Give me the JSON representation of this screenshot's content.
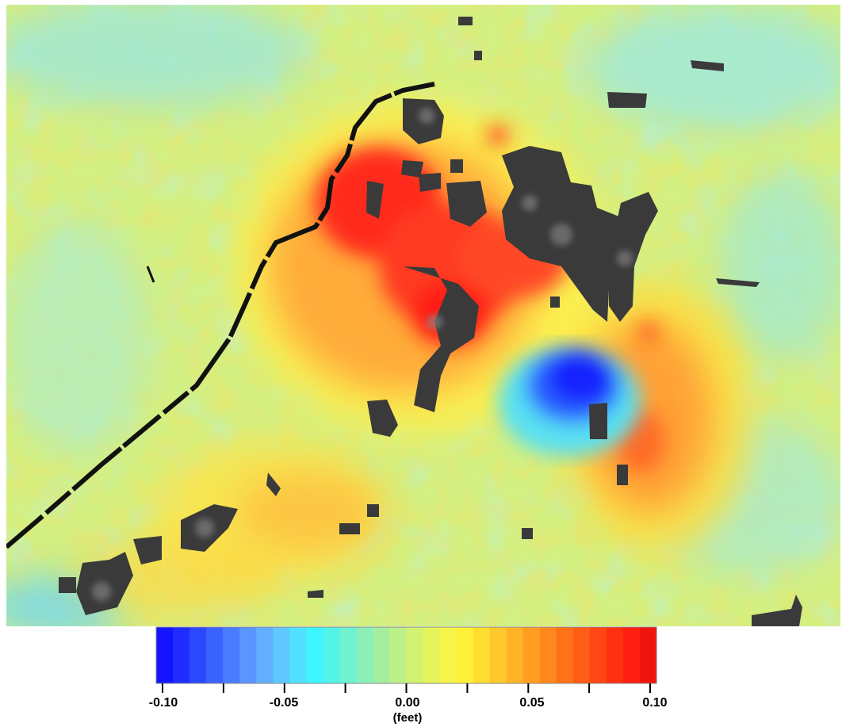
{
  "map": {
    "colors": {
      "background": "#d7f27a",
      "uplift": "#ff2d1f",
      "moderate_uplift": "#ffa13a",
      "subsidence": "#1430ff",
      "moderate_subsidence": "#5ee0f0",
      "masked": "#3b3b3b"
    }
  },
  "legend": {
    "unit": "(feet)",
    "ticks": [
      "-0.10",
      "-0.05",
      "0.00",
      "0.05",
      "0.10"
    ],
    "range": [
      -0.1,
      0.1
    ],
    "color_steps": [
      "#1414ff",
      "#1f2eff",
      "#2c48ff",
      "#3a62ff",
      "#4a7cff",
      "#5a96ff",
      "#62aeff",
      "#5ec8ff",
      "#52e0ff",
      "#3ef4ff",
      "#52f4e8",
      "#6ef2d0",
      "#8af0b8",
      "#a4ee9e",
      "#bcf088",
      "#d2f272",
      "#e6f45c",
      "#f6f448",
      "#fff03a",
      "#ffde32",
      "#ffc82c",
      "#ffb426",
      "#ff9e20",
      "#ff881c",
      "#ff7218",
      "#ff5c16",
      "#ff4614",
      "#ff3012",
      "#ff1e10",
      "#f0140e"
    ]
  }
}
